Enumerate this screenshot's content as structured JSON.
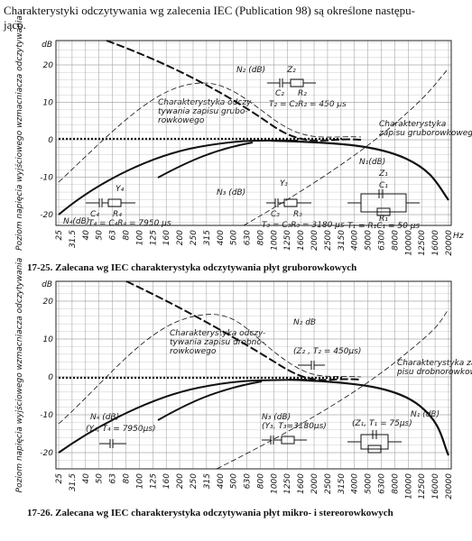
{
  "header": {
    "lines": [
      "Charakterystyki odczytywania wg zalecenia IEC (Publication 98) są określone następu-",
      "jąco."
    ]
  },
  "figures": [
    {
      "y_unit": "dB",
      "y_axis_label": "Poziom napięcia wyjściowego wzmacniacza odczytywania",
      "yticks": [
        "20",
        "10",
        "0",
        "-10",
        "-20"
      ],
      "xticks": [
        "25",
        "31.5",
        "40",
        "50",
        "63",
        "80",
        "100",
        "125",
        "160",
        "200",
        "250",
        "315",
        "400",
        "500",
        "630",
        "800",
        "1000",
        "1250",
        "1600",
        "2000",
        "2500",
        "3150",
        "4000",
        "5000",
        "6300",
        "8000",
        "10000",
        "12500",
        "16000",
        "20000"
      ],
      "x_unit": "Hz",
      "annotations": [
        [
          "N₂ (dB)"
        ],
        [
          "Z₂"
        ],
        [
          "C₂"
        ],
        [
          "R₂"
        ],
        [
          "T₂ = C₂R₂ = 450 μs"
        ],
        [
          "Charakterystyka odczy-",
          "tywania zapisu grubo-",
          "rowkowego"
        ],
        [
          "Charakterystyka",
          "zapisu gruborowkowego"
        ],
        [
          "N₁(dB)"
        ],
        [
          "Z₁"
        ],
        [
          "R₁"
        ],
        [
          "C₁"
        ],
        [
          "T₁ = R₁C₁ = 50 μs"
        ],
        [
          "N₃ (dB)"
        ],
        [
          "Y₃"
        ],
        [
          "C₃"
        ],
        [
          "R₃"
        ],
        [
          "T₃ = C₃R₃ = 3180 μs"
        ],
        [
          "Y₄"
        ],
        [
          "C₄"
        ],
        [
          "R₄"
        ],
        [
          "N₄(dB)"
        ],
        [
          "T₄ = C₄R₄ = 7950 μs"
        ]
      ],
      "caption": "17-25. Zalecana wg IEC charakterystyka odczytywania płyt gruborowkowych"
    },
    {
      "y_unit": "dB",
      "y_axis_label": "Poziom napięcia wyjściowego wzmacniacza odczytywania",
      "yticks": [
        "20",
        "10",
        "0",
        "-10",
        "-20"
      ],
      "xticks": [
        "25",
        "31.5",
        "40",
        "50",
        "63",
        "80",
        "100",
        "125",
        "160",
        "200",
        "250",
        "315",
        "400",
        "500",
        "630",
        "800",
        "1000",
        "1250",
        "1600",
        "2000",
        "2500",
        "3150",
        "4000",
        "5000",
        "6300",
        "8000",
        "10000",
        "12500",
        "16000",
        "20000"
      ],
      "annotations": [
        [
          "N₂ dB"
        ],
        [
          "(Z₂ , T₂ = 450μs)"
        ],
        [
          "Charakterystyka odczy-",
          "tywania zapisu drobno-",
          "rowkowego"
        ],
        [
          "Charakterystyka za-",
          "pisu drobnorowkowego"
        ],
        [
          "N₁ (dB)"
        ],
        [
          "(Z₁, T₁ = 75μs)"
        ],
        [
          "N₃ (dB)"
        ],
        [
          "(Y₃, T₃=3180μs)"
        ],
        [
          "N₄ (dB)"
        ],
        [
          "(Y₄, T₄ = 7950μs)"
        ]
      ],
      "caption": "17-26. Zalecana wg IEC charakterystyka odczytywania płyt mikro- i stereorowkowych"
    }
  ]
}
